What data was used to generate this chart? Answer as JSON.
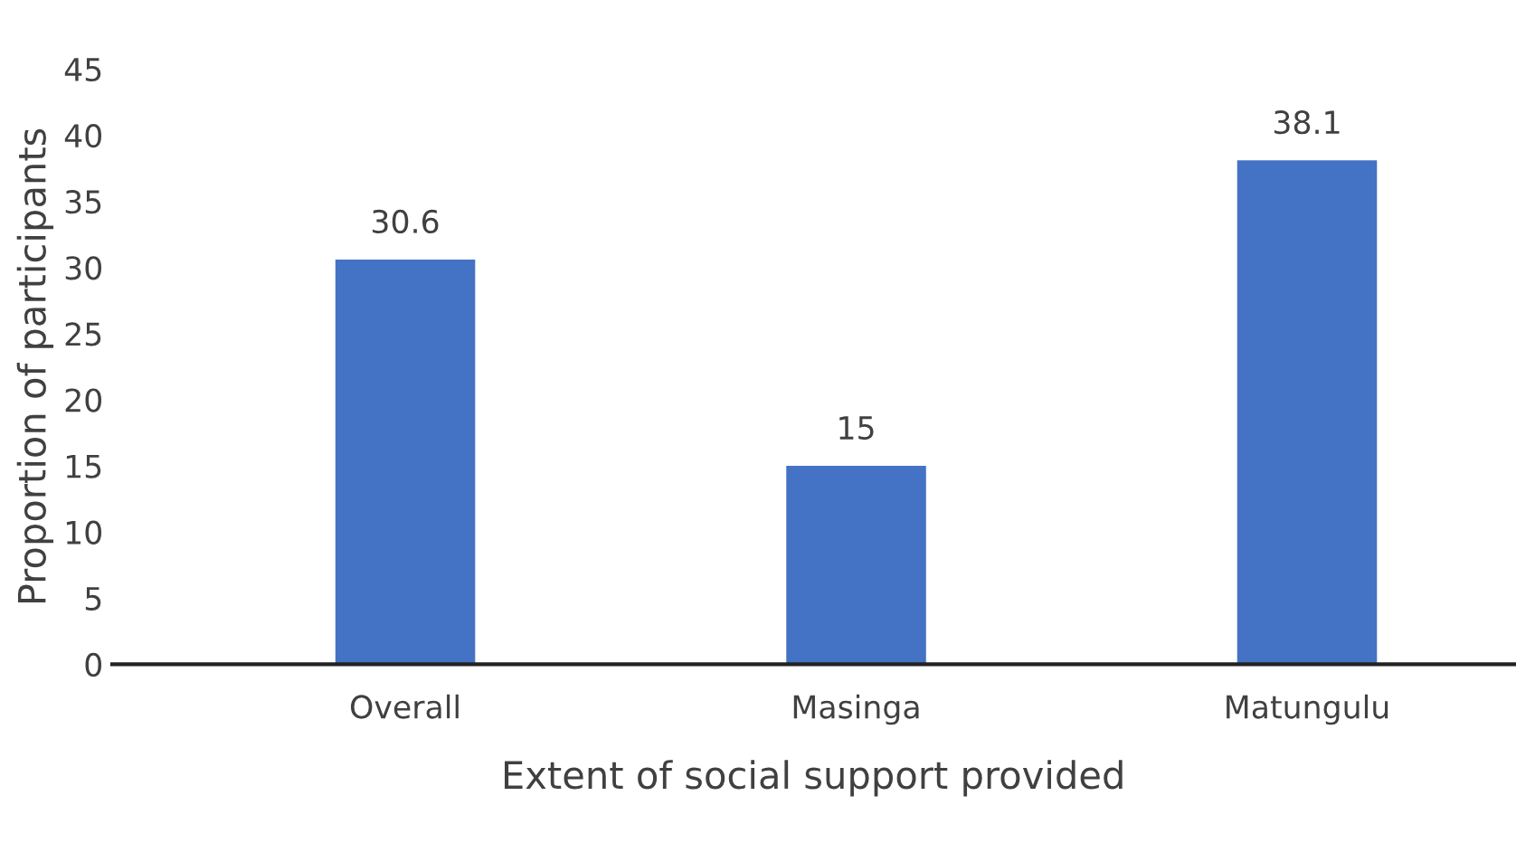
{
  "chart_data": {
    "type": "bar",
    "xlabel": "Extent of social support provided",
    "ylabel": "Proportion of participants",
    "categories": [
      "Overall",
      "Masinga",
      "Matungulu"
    ],
    "series": [
      {
        "color": "#4472c4",
        "values": [
          30.6,
          15,
          38.1
        ]
      }
    ],
    "ylim": [
      0,
      45
    ],
    "yticks": [
      0,
      5,
      10,
      15,
      20,
      25,
      30,
      35,
      40,
      45
    ],
    "data_labels": true,
    "grid": false,
    "legend": false
  }
}
